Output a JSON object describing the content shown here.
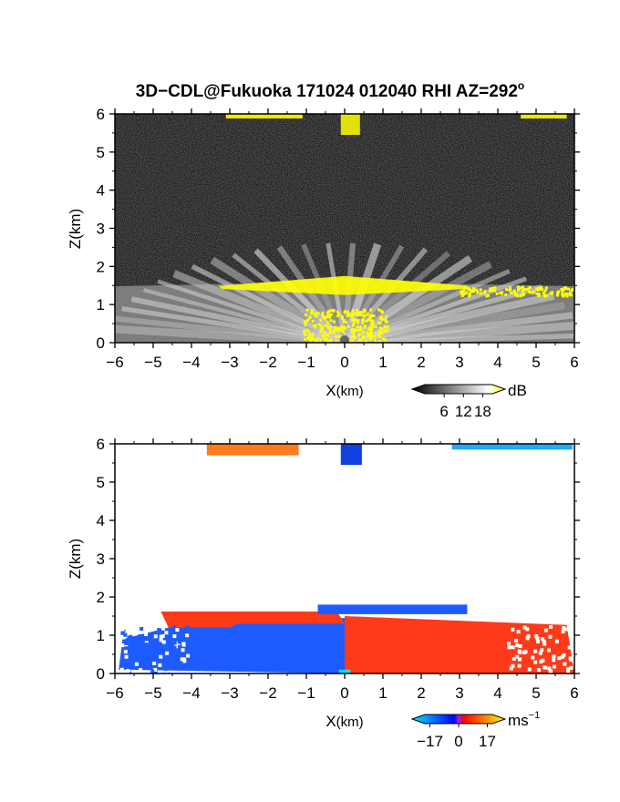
{
  "figure": {
    "title_main": "3D−CDL@Fukuoka 171024 012040 RHI AZ=292",
    "title_degree": "o"
  },
  "chart_data": [
    {
      "type": "heatmap",
      "variable": "signal intensity (RHI)",
      "xlabel_main": "X",
      "xlabel_unit": "(km)",
      "ylabel": "Z(km)",
      "xlim": [
        -6,
        6
      ],
      "ylim": [
        0,
        6
      ],
      "x_ticks": [
        "−6",
        "−5",
        "−4",
        "−3",
        "−2",
        "−1",
        "0",
        "1",
        "2",
        "3",
        "4",
        "5",
        "6"
      ],
      "y_ticks": [
        "0",
        "1",
        "2",
        "3",
        "4",
        "5",
        "6"
      ],
      "colorbar": {
        "unit": "dB",
        "tick_labels": [
          "6",
          "12",
          "18"
        ],
        "tick_values": [
          6,
          12,
          18
        ],
        "range": [
          0,
          21
        ],
        "colors": [
          "#000000",
          "#ffffff",
          "#ffff00"
        ]
      },
      "features": {
        "boundary_layer_top_km": 1.6,
        "high_intensity_color": "#ffff00"
      }
    },
    {
      "type": "heatmap",
      "variable": "Doppler velocity (RHI)",
      "xlabel_main": "X",
      "xlabel_unit": "(km)",
      "ylabel": "Z(km)",
      "xlim": [
        -6,
        6
      ],
      "ylim": [
        0,
        6
      ],
      "x_ticks": [
        "−6",
        "−5",
        "−4",
        "−3",
        "−2",
        "−1",
        "0",
        "1",
        "2",
        "3",
        "4",
        "5",
        "6"
      ],
      "y_ticks": [
        "0",
        "1",
        "2",
        "3",
        "4",
        "5",
        "6"
      ],
      "colorbar": {
        "unit_main": "ms",
        "unit_exp": "−1",
        "tick_labels": [
          "−17",
          "0",
          "17"
        ],
        "tick_values": [
          -17,
          0,
          17
        ],
        "range": [
          -20,
          20
        ],
        "colors": [
          "#00e5ff",
          "#0000ff",
          "#ff0000",
          "#ffff00"
        ]
      },
      "features": {
        "boundary_layer_top_km": 1.6,
        "negative_side_color": "#1e5bff",
        "positive_side_color": "#ff3a1a"
      }
    }
  ]
}
